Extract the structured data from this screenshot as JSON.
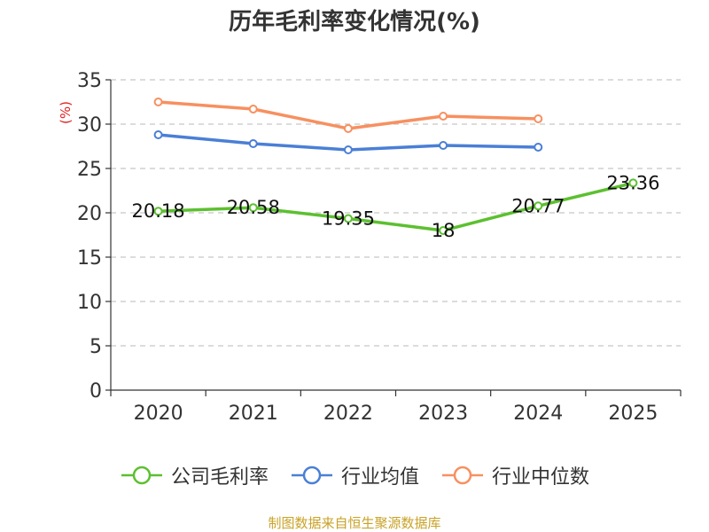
{
  "chart_data": {
    "type": "line",
    "title": "历年毛利率变化情况(%)",
    "ylabel": "(%)",
    "xlabel": "",
    "categories": [
      "2020",
      "2021",
      "2022",
      "2023",
      "2024",
      "2025"
    ],
    "ylim": [
      0,
      35
    ],
    "yticks": [
      "0",
      "5",
      "10",
      "15",
      "20",
      "25",
      "30",
      "35"
    ],
    "grid": true,
    "legend_position": "bottom",
    "series": [
      {
        "name": "公司毛利率",
        "color": "#5cc030",
        "values": [
          20.18,
          20.58,
          19.35,
          18,
          20.77,
          23.36
        ],
        "labels": [
          "20.18",
          "20.58",
          "19.35",
          "18",
          "20.77",
          "23.36"
        ]
      },
      {
        "name": "行业均值",
        "color": "#4a7fd6",
        "values": [
          28.8,
          27.8,
          27.1,
          27.6,
          27.4,
          null
        ]
      },
      {
        "name": "行业中位数",
        "color": "#f79060",
        "values": [
          32.5,
          31.7,
          29.5,
          30.9,
          30.6,
          null
        ]
      }
    ]
  },
  "footer": {
    "source": "制图数据来自恒生聚源数据库"
  }
}
